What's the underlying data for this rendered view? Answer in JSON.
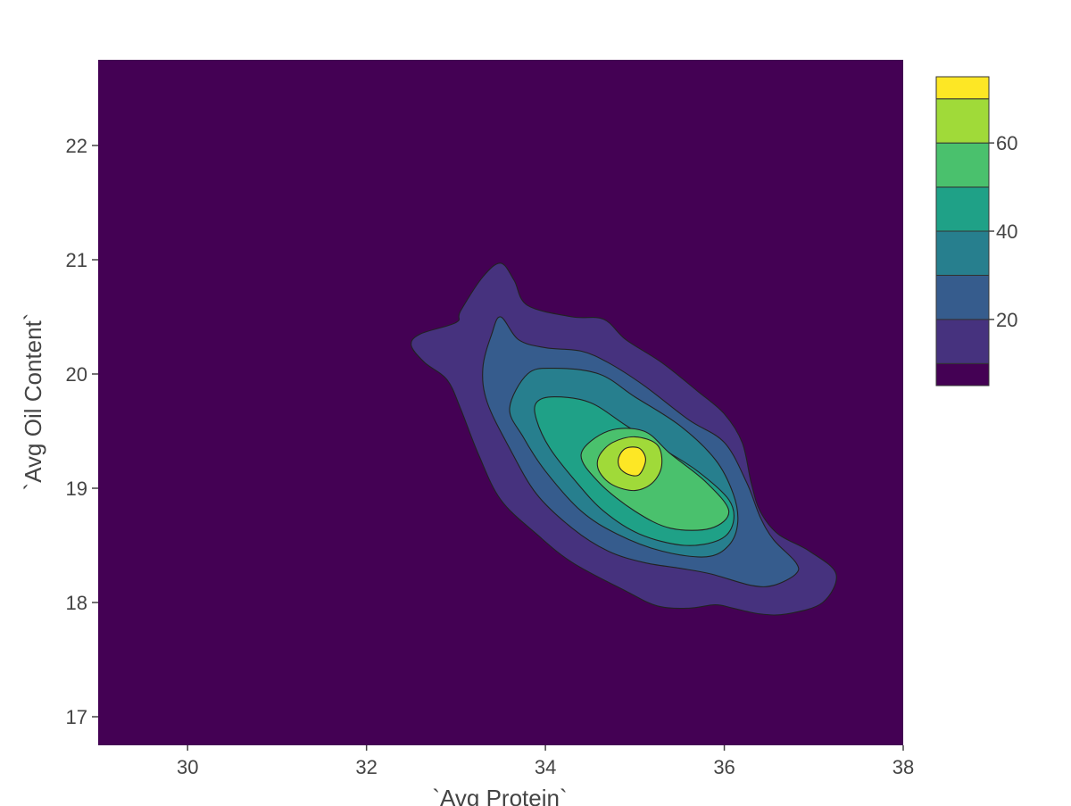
{
  "chart_data": {
    "type": "contour",
    "title": "",
    "xlabel": "`Avg Protein`",
    "ylabel": "`Avg Oil Content`",
    "xlim": [
      29.0,
      38.0
    ],
    "ylim": [
      16.75,
      22.75
    ],
    "x_ticks": [
      30,
      32,
      34,
      36,
      38
    ],
    "y_ticks": [
      17,
      18,
      19,
      20,
      21,
      22
    ],
    "grid": false,
    "colorscale": "viridis",
    "z_levels": [
      5,
      10,
      20,
      30,
      40,
      50,
      60,
      70,
      75
    ],
    "level_colors": [
      "#440154",
      "#46327e",
      "#365c8d",
      "#277f8e",
      "#1fa187",
      "#4ac16d",
      "#a0da39",
      "#fde725"
    ],
    "colorbar": {
      "ticks": [
        20,
        40,
        60
      ],
      "range": [
        5,
        75
      ],
      "placement": "right"
    },
    "peak": {
      "x": 34.98,
      "y": 19.24,
      "z": 72
    },
    "contours": [
      {
        "level": 10,
        "points": [
          [
            32.6,
            20.35
          ],
          [
            33.0,
            20.45
          ],
          [
            33.05,
            20.55
          ],
          [
            33.3,
            20.85
          ],
          [
            33.5,
            20.97
          ],
          [
            33.65,
            20.82
          ],
          [
            33.8,
            20.6
          ],
          [
            34.3,
            20.5
          ],
          [
            34.65,
            20.48
          ],
          [
            34.9,
            20.3
          ],
          [
            35.3,
            20.1
          ],
          [
            35.7,
            19.85
          ],
          [
            36.0,
            19.65
          ],
          [
            36.2,
            19.4
          ],
          [
            36.3,
            19.05
          ],
          [
            36.4,
            18.8
          ],
          [
            36.6,
            18.6
          ],
          [
            36.95,
            18.45
          ],
          [
            37.25,
            18.25
          ],
          [
            37.1,
            18.0
          ],
          [
            36.7,
            17.9
          ],
          [
            36.4,
            17.9
          ],
          [
            36.1,
            17.95
          ],
          [
            35.9,
            17.98
          ],
          [
            35.6,
            17.95
          ],
          [
            35.25,
            17.97
          ],
          [
            34.9,
            18.1
          ],
          [
            34.3,
            18.35
          ],
          [
            33.9,
            18.6
          ],
          [
            33.5,
            18.9
          ],
          [
            33.25,
            19.3
          ],
          [
            33.05,
            19.7
          ],
          [
            32.9,
            19.95
          ],
          [
            32.65,
            20.1
          ],
          [
            32.5,
            20.25
          ]
        ]
      },
      {
        "level": 20,
        "points": [
          [
            33.3,
            20.05
          ],
          [
            33.4,
            20.35
          ],
          [
            33.5,
            20.5
          ],
          [
            33.7,
            20.3
          ],
          [
            34.0,
            20.23
          ],
          [
            34.4,
            20.2
          ],
          [
            34.7,
            20.1
          ],
          [
            35.1,
            19.9
          ],
          [
            35.6,
            19.6
          ],
          [
            36.0,
            19.4
          ],
          [
            36.25,
            19.05
          ],
          [
            36.4,
            18.75
          ],
          [
            36.55,
            18.55
          ],
          [
            36.8,
            18.35
          ],
          [
            36.8,
            18.25
          ],
          [
            36.55,
            18.15
          ],
          [
            36.3,
            18.15
          ],
          [
            35.85,
            18.25
          ],
          [
            35.5,
            18.3
          ],
          [
            35.1,
            18.35
          ],
          [
            34.7,
            18.45
          ],
          [
            34.3,
            18.65
          ],
          [
            33.9,
            18.95
          ],
          [
            33.6,
            19.35
          ],
          [
            33.35,
            19.75
          ]
        ]
      },
      {
        "level": 30,
        "points": [
          [
            33.6,
            19.7
          ],
          [
            33.8,
            20.0
          ],
          [
            34.1,
            20.05
          ],
          [
            34.6,
            20.0
          ],
          [
            35.0,
            19.8
          ],
          [
            35.5,
            19.55
          ],
          [
            35.9,
            19.25
          ],
          [
            36.1,
            18.95
          ],
          [
            36.15,
            18.7
          ],
          [
            36.05,
            18.5
          ],
          [
            35.8,
            18.4
          ],
          [
            35.3,
            18.45
          ],
          [
            34.8,
            18.6
          ],
          [
            34.4,
            18.8
          ],
          [
            34.0,
            19.15
          ],
          [
            33.75,
            19.45
          ]
        ]
      },
      {
        "level": 40,
        "points": [
          [
            33.9,
            19.75
          ],
          [
            34.1,
            19.8
          ],
          [
            34.5,
            19.75
          ],
          [
            34.9,
            19.55
          ],
          [
            35.3,
            19.35
          ],
          [
            35.7,
            19.15
          ],
          [
            36.05,
            18.9
          ],
          [
            36.1,
            18.7
          ],
          [
            35.95,
            18.55
          ],
          [
            35.55,
            18.5
          ],
          [
            35.05,
            18.6
          ],
          [
            34.65,
            18.8
          ],
          [
            34.35,
            19.05
          ],
          [
            34.05,
            19.35
          ],
          [
            33.9,
            19.6
          ]
        ]
      },
      {
        "level": 50,
        "points": [
          [
            34.4,
            19.3
          ],
          [
            34.7,
            19.5
          ],
          [
            35.1,
            19.5
          ],
          [
            35.4,
            19.3
          ],
          [
            35.8,
            19.05
          ],
          [
            36.05,
            18.8
          ],
          [
            35.85,
            18.65
          ],
          [
            35.4,
            18.65
          ],
          [
            35.0,
            18.8
          ],
          [
            34.6,
            19.05
          ]
        ]
      },
      {
        "level": 60,
        "points": [
          [
            34.6,
            19.28
          ],
          [
            34.75,
            19.4
          ],
          [
            35.0,
            19.45
          ],
          [
            35.25,
            19.38
          ],
          [
            35.3,
            19.2
          ],
          [
            35.2,
            19.05
          ],
          [
            35.0,
            18.98
          ],
          [
            34.75,
            19.03
          ],
          [
            34.6,
            19.15
          ]
        ]
      },
      {
        "level": 70,
        "points": [
          [
            34.82,
            19.27
          ],
          [
            34.9,
            19.35
          ],
          [
            35.05,
            19.35
          ],
          [
            35.12,
            19.25
          ],
          [
            35.05,
            19.12
          ],
          [
            34.93,
            19.12
          ],
          [
            34.83,
            19.18
          ]
        ]
      }
    ]
  }
}
